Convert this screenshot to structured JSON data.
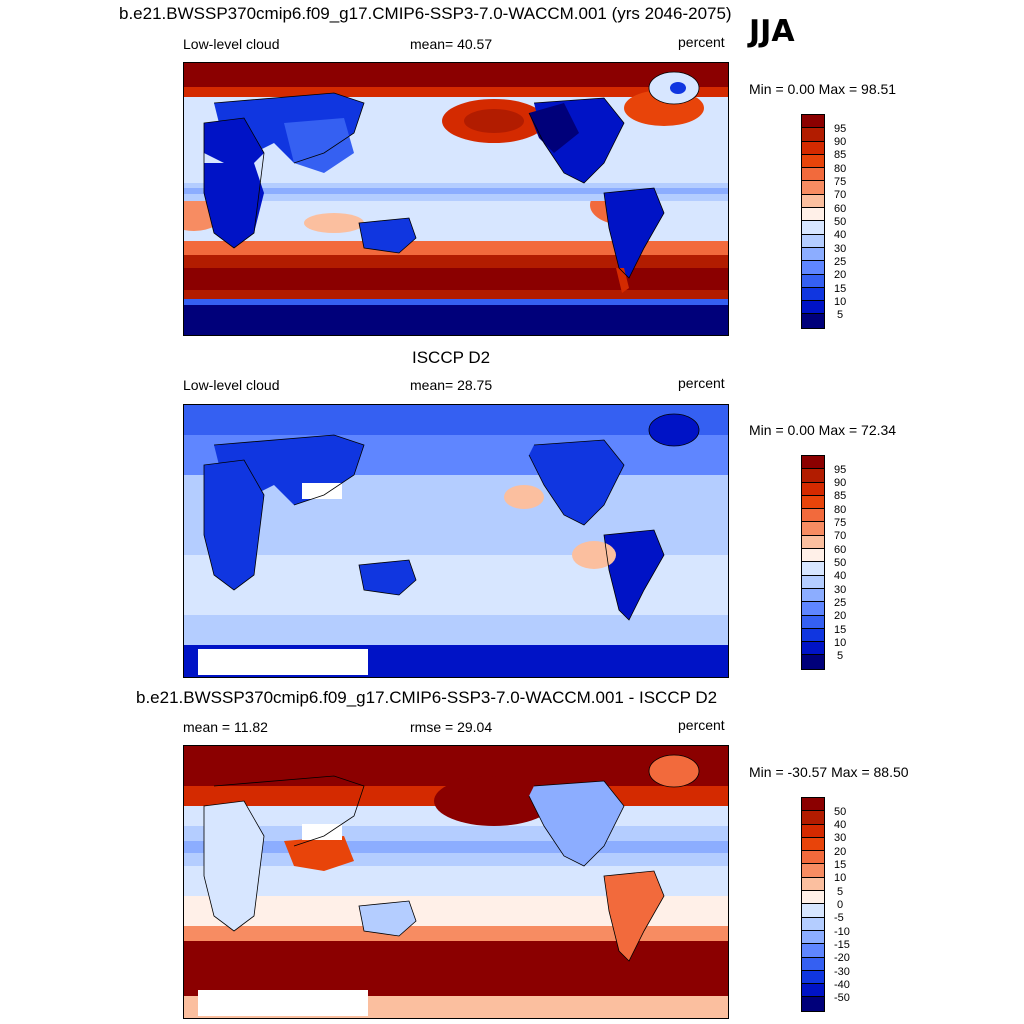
{
  "season": "JJA",
  "panels": [
    {
      "title": "b.e21.BWSSP370cmip6.f09_g17.CMIP6-SSP3-7.0-WACCM.001 (yrs 2046-2075)",
      "left_label": "Low-level cloud",
      "center_label": "mean=  40.57",
      "right_label": "percent",
      "minmax": "Min =   0.00 Max =  98.51",
      "colorbar_labels": [
        "95",
        "90",
        "85",
        "80",
        "75",
        "70",
        "60",
        "50",
        "40",
        "30",
        "25",
        "20",
        "15",
        "10",
        "5"
      ]
    },
    {
      "title": "ISCCP D2",
      "left_label": "Low-level cloud",
      "center_label": "mean=  28.75",
      "right_label": "percent",
      "minmax": "Min =   0.00 Max =  72.34",
      "colorbar_labels": [
        "95",
        "90",
        "85",
        "80",
        "75",
        "70",
        "60",
        "50",
        "40",
        "30",
        "25",
        "20",
        "15",
        "10",
        "5"
      ]
    },
    {
      "title": "b.e21.BWSSP370cmip6.f09_g17.CMIP6-SSP3-7.0-WACCM.001 - ISCCP D2",
      "left_label": "mean =  11.82",
      "center_label": "rmse =  29.04",
      "right_label": "percent",
      "minmax": "Min = -30.57 Max =  88.50",
      "colorbar_labels": [
        "50",
        "40",
        "30",
        "20",
        "15",
        "10",
        "5",
        "0",
        "-5",
        "-10",
        "-15",
        "-20",
        "-30",
        "-40",
        "-50"
      ]
    }
  ],
  "colors": {
    "scale": [
      "#8b0000",
      "#b21c00",
      "#d42a00",
      "#e8440a",
      "#f26a3c",
      "#f78c62",
      "#fbbf9f",
      "#fff0e8",
      "#d7e6ff",
      "#b4cdff",
      "#8cadff",
      "#5f86ff",
      "#3560f2",
      "#1036e0",
      "#0013c6",
      "#00007a"
    ]
  }
}
